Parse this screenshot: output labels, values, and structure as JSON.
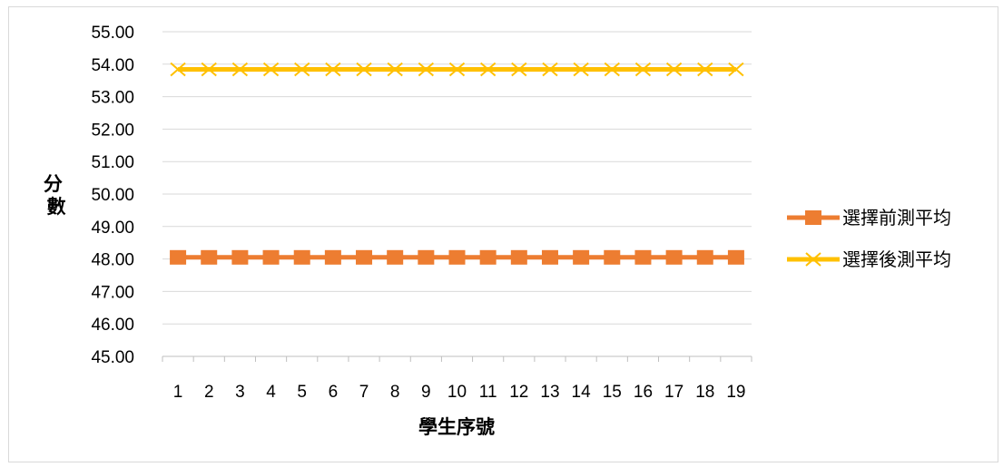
{
  "chart_data": {
    "type": "line",
    "categories": [
      "1",
      "2",
      "3",
      "4",
      "5",
      "6",
      "7",
      "8",
      "9",
      "10",
      "11",
      "12",
      "13",
      "14",
      "15",
      "16",
      "17",
      "18",
      "19"
    ],
    "series": [
      {
        "name": "選擇前測平均",
        "values": [
          48.05,
          48.05,
          48.05,
          48.05,
          48.05,
          48.05,
          48.05,
          48.05,
          48.05,
          48.05,
          48.05,
          48.05,
          48.05,
          48.05,
          48.05,
          48.05,
          48.05,
          48.05,
          48.05
        ],
        "color": "#ED7D31",
        "marker": "square"
      },
      {
        "name": "選擇後測平均",
        "values": [
          53.84,
          53.84,
          53.84,
          53.84,
          53.84,
          53.84,
          53.84,
          53.84,
          53.84,
          53.84,
          53.84,
          53.84,
          53.84,
          53.84,
          53.84,
          53.84,
          53.84,
          53.84,
          53.84
        ],
        "color": "#FFC000",
        "marker": "x"
      }
    ],
    "ylim": [
      45,
      55
    ],
    "yticks": [
      "45.00",
      "46.00",
      "47.00",
      "48.00",
      "49.00",
      "50.00",
      "51.00",
      "52.00",
      "53.00",
      "54.00",
      "55.00"
    ],
    "xlabel": "學生序號",
    "ylabel": "分數",
    "grid": true,
    "gridline_color": "#d9d9d9",
    "legend_position": "right"
  }
}
